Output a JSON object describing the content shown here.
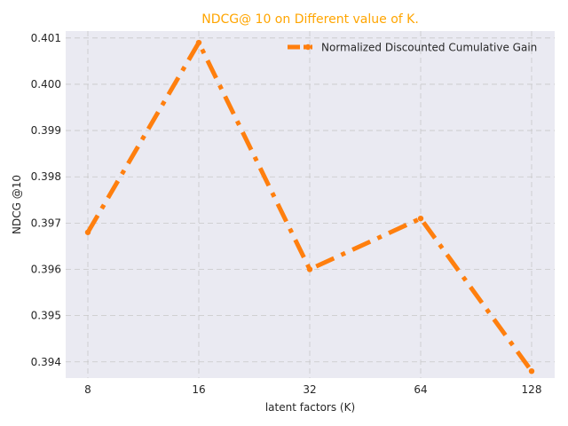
{
  "chart_data": {
    "type": "line",
    "title": "NDCG@ 10 on Different value of K.",
    "title_color": "#FFA500",
    "xlabel": "latent factors (K)",
    "ylabel": "NDCG @10",
    "categories": [
      "8",
      "16",
      "32",
      "64",
      "128"
    ],
    "series": [
      {
        "name": "Normalized Discounted Cumulative Gain",
        "values": [
          0.3968,
          0.4009,
          0.396,
          0.3971,
          0.3938
        ],
        "color": "#FF7F0E",
        "line_style": "dash-dot",
        "marker": "circle"
      }
    ],
    "yticks": [
      "0.394",
      "0.395",
      "0.396",
      "0.397",
      "0.398",
      "0.399",
      "0.400",
      "0.401"
    ],
    "ytick_values": [
      0.394,
      0.395,
      0.396,
      0.397,
      0.398,
      0.399,
      0.4,
      0.401
    ],
    "ylim": [
      0.39365,
      0.40115
    ],
    "grid": true,
    "grid_style": "dashed",
    "background_color": "#EAEAF2",
    "legend_position": "top-right"
  }
}
